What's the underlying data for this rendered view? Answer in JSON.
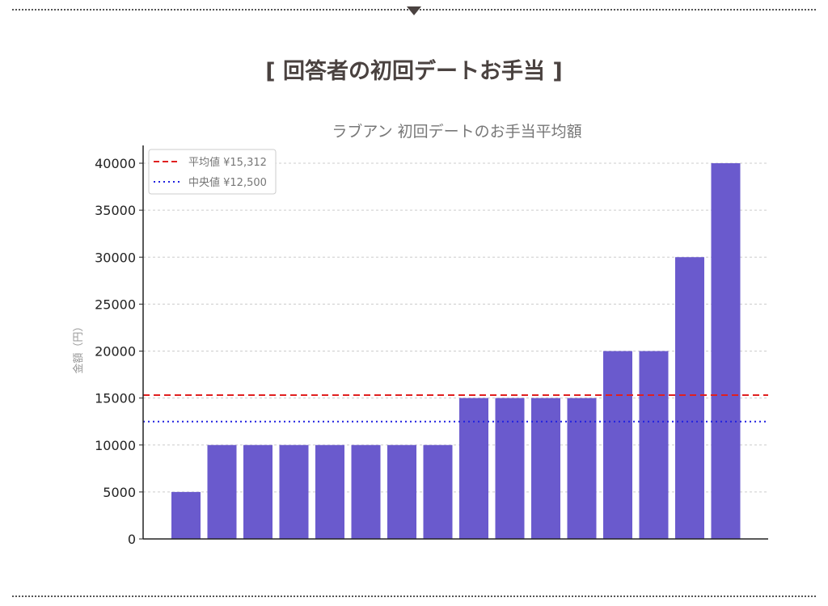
{
  "heading": "[ 回答者の初回デートお手当 ]",
  "chart_data": {
    "type": "bar",
    "title": "ラブアン 初回デートのお手当平均額",
    "xlabel": "",
    "ylabel": "金額（円）",
    "ylim": [
      0,
      42000
    ],
    "yticks": [
      0,
      5000,
      10000,
      15000,
      20000,
      25000,
      30000,
      35000,
      40000
    ],
    "grid": "horizontal dashed",
    "values": [
      5000,
      10000,
      10000,
      10000,
      10000,
      10000,
      10000,
      10000,
      15000,
      15000,
      15000,
      15000,
      20000,
      20000,
      30000,
      40000
    ],
    "bar_color": "#6a5acd",
    "reference_lines": [
      {
        "name": "平均値 ¥15,312",
        "value": 15312,
        "color": "#e02020",
        "style": "dashed"
      },
      {
        "name": "中央値 ¥12,500",
        "value": 12500,
        "color": "#2020e0",
        "style": "dotted"
      }
    ],
    "legend": "top-left"
  }
}
